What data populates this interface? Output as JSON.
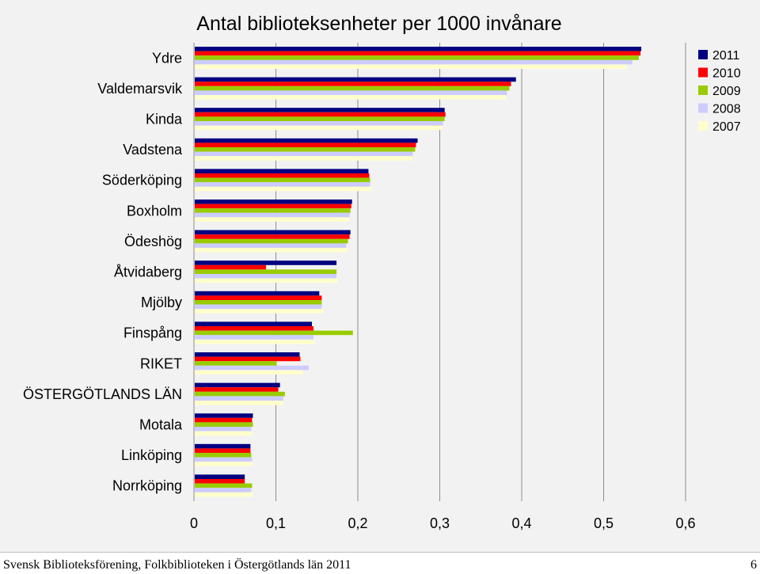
{
  "chart_data": {
    "type": "bar",
    "orientation": "horizontal",
    "title": "Antal biblioteksenheter per 1000 invånare",
    "categories": [
      "Ydre",
      "Valdemarsvik",
      "Kinda",
      "Vadstena",
      "Söderköping",
      "Boxholm",
      "Ödeshög",
      "Åtvidaberg",
      "Mjölby",
      "Finspång",
      "RIKET",
      "ÖSTERGÖTLANDS LÄN",
      "Motala",
      "Linköping",
      "Norrköping"
    ],
    "series": [
      {
        "name": "2011",
        "color": "#000080",
        "values": [
          0.545,
          0.392,
          0.305,
          0.272,
          0.212,
          0.192,
          0.19,
          0.173,
          0.152,
          0.143,
          0.128,
          0.104,
          0.071,
          0.068,
          0.061
        ]
      },
      {
        "name": "2010",
        "color": "#ff0000",
        "values": [
          0.544,
          0.386,
          0.306,
          0.27,
          0.213,
          0.191,
          0.189,
          0.087,
          0.155,
          0.145,
          0.129,
          0.102,
          0.07,
          0.068,
          0.061
        ]
      },
      {
        "name": "2009",
        "color": "#99cc00",
        "values": [
          0.542,
          0.384,
          0.305,
          0.269,
          0.214,
          0.19,
          0.187,
          0.173,
          0.155,
          0.193,
          0.1,
          0.11,
          0.071,
          0.069,
          0.07
        ]
      },
      {
        "name": "2008",
        "color": "#ccccff",
        "values": [
          0.534,
          0.381,
          0.303,
          0.266,
          0.214,
          0.189,
          0.185,
          0.173,
          0.155,
          0.145,
          0.139,
          0.108,
          0.069,
          0.07,
          0.069
        ]
      },
      {
        "name": "2007",
        "color": "#ffffcc",
        "values": [
          0.527,
          0.38,
          0.302,
          0.266,
          0.215,
          0.188,
          0.186,
          0.174,
          0.157,
          0.146,
          0.132,
          0.108,
          0.07,
          0.07,
          0.071
        ]
      }
    ],
    "xlim": [
      0,
      0.6
    ],
    "x_ticks": [
      "0",
      "0,1",
      "0,2",
      "0,3",
      "0,4",
      "0,5",
      "0,6"
    ],
    "grid": "vertical",
    "legend_position": "top-right"
  },
  "footer": {
    "text": "Svensk Biblioteksförening, Folkbiblioteken i Östergötlands län 2011",
    "page_number": "6"
  }
}
